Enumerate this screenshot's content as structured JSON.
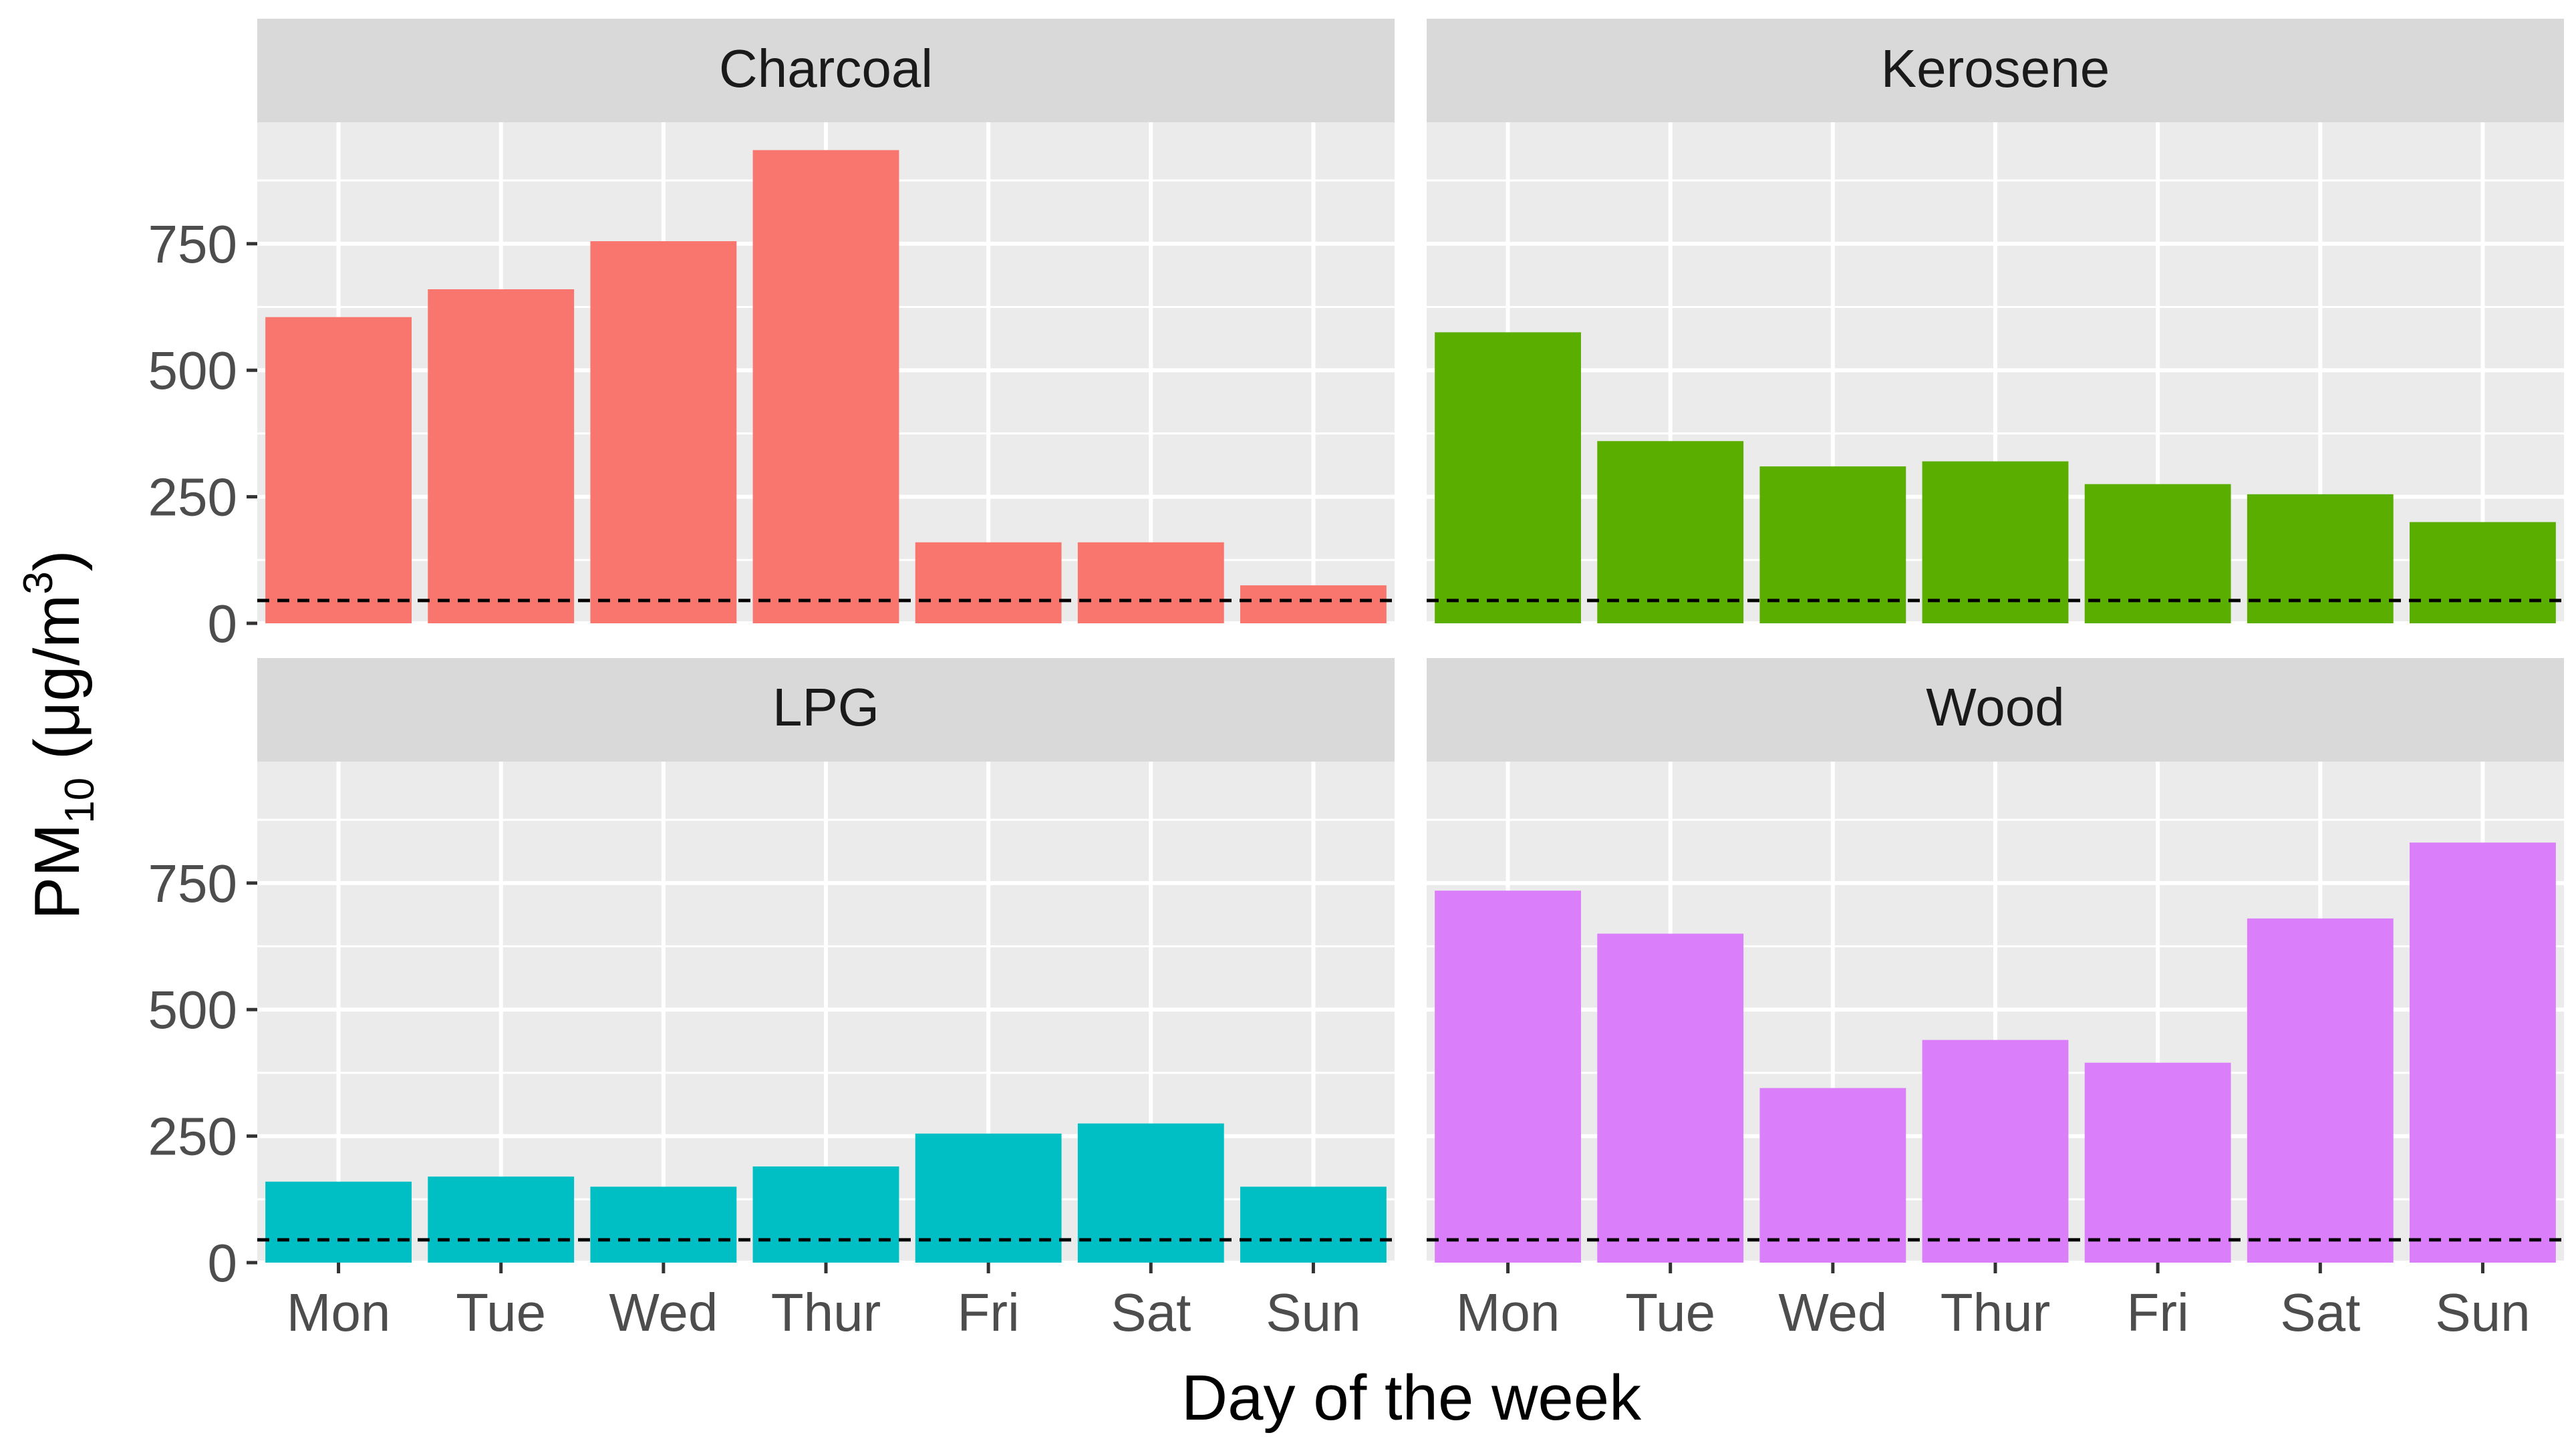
{
  "chart_data": {
    "type": "bar",
    "layout": "facet-grid-2x2",
    "xlabel": "Day of the week",
    "ylabel": {
      "main": "PM",
      "subscript": "10",
      "unit_open": " (μg/m",
      "superscript": "3",
      "unit_close": ")"
    },
    "categories": [
      "Mon",
      "Tue",
      "Wed",
      "Thur",
      "Fri",
      "Sat",
      "Sun"
    ],
    "ylim": [
      0,
      990
    ],
    "yticks": [
      0,
      250,
      500,
      750
    ],
    "ytick_labels": [
      "0",
      "250",
      "500",
      "750"
    ],
    "reference_line": {
      "value": 45,
      "style": "dashed",
      "color": "#000000"
    },
    "panel_background": "#ebebeb",
    "strip_background": "#d9d9d9",
    "grid_color": "#ffffff",
    "facets": [
      {
        "name": "Charcoal",
        "color": "#F8766D",
        "values": [
          605,
          660,
          755,
          935,
          160,
          160,
          75
        ]
      },
      {
        "name": "Kerosene",
        "color": "#5AAE00",
        "values": [
          575,
          360,
          310,
          320,
          275,
          255,
          200
        ]
      },
      {
        "name": "LPG",
        "color": "#00BFC4",
        "values": [
          160,
          170,
          150,
          190,
          255,
          275,
          150
        ]
      },
      {
        "name": "Wood",
        "color": "#DA7EFA",
        "values": [
          735,
          650,
          345,
          440,
          395,
          680,
          830
        ]
      }
    ]
  }
}
